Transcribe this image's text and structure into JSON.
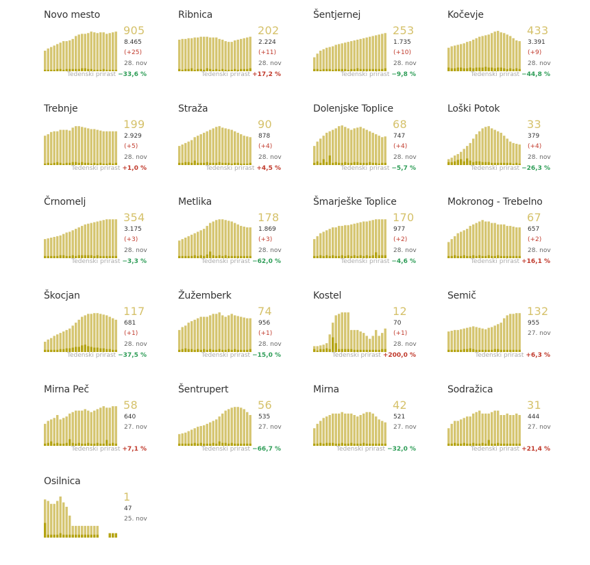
{
  "colors": {
    "active_bar": "#d5c570",
    "new_bar": "#b4a311",
    "active_text": "#d5c16a",
    "growth_down": "#2e9d57",
    "growth_up": "#c0392b"
  },
  "growth_label": "Tedenski prirast",
  "chart_data": [
    {
      "type": "bar",
      "title": "Novo mesto",
      "active": "905",
      "total": "8.465",
      "new": "(+25)",
      "date": "28. nov",
      "growth": "−33,6 %",
      "growth_dir": "down",
      "active_series": [
        28,
        31,
        33,
        35,
        37,
        39,
        41,
        41,
        42,
        44,
        48,
        50,
        51,
        51,
        52,
        54,
        53,
        52,
        53,
        53,
        51,
        52,
        53,
        54
      ],
      "new_series": [
        2,
        2,
        2,
        2,
        3,
        3,
        2,
        3,
        3,
        3,
        3,
        3,
        4,
        4,
        3,
        3,
        2,
        2,
        2,
        3,
        2,
        2,
        2,
        2
      ]
    },
    {
      "type": "bar",
      "title": "Ribnica",
      "active": "202",
      "total": "2.224",
      "new": "(+11)",
      "date": "28. nov",
      "growth": "+17,2 %",
      "growth_dir": "up",
      "active_series": [
        43,
        44,
        44,
        45,
        45,
        46,
        46,
        47,
        47,
        47,
        46,
        46,
        46,
        44,
        43,
        41,
        40,
        40,
        42,
        43,
        44,
        45,
        46,
        47
      ],
      "new_series": [
        3,
        2,
        3,
        3,
        4,
        2,
        3,
        3,
        2,
        4,
        3,
        2,
        3,
        2,
        3,
        2,
        2,
        2,
        3,
        2,
        3,
        3,
        3,
        4
      ]
    },
    {
      "type": "bar",
      "title": "Šentjernej",
      "active": "253",
      "total": "1.735",
      "new": "(+10)",
      "date": "28. nov",
      "growth": "−9,8 %",
      "growth_dir": "down",
      "active_series": [
        19,
        24,
        28,
        30,
        32,
        33,
        34,
        36,
        37,
        38,
        39,
        40,
        41,
        42,
        43,
        44,
        45,
        46,
        47,
        48,
        49,
        50,
        51,
        52
      ],
      "new_series": [
        3,
        3,
        2,
        3,
        3,
        3,
        2,
        3,
        3,
        3,
        3,
        2,
        3,
        3,
        4,
        3,
        3,
        3,
        3,
        3,
        3,
        3,
        3,
        4
      ]
    },
    {
      "type": "bar",
      "title": "Kočevje",
      "active": "433",
      "total": "3.391",
      "new": "(+9)",
      "date": "28. nov",
      "growth": "−44,8 %",
      "growth_dir": "down",
      "active_series": [
        32,
        34,
        35,
        36,
        37,
        38,
        40,
        41,
        43,
        45,
        47,
        48,
        49,
        50,
        52,
        54,
        55,
        53,
        52,
        50,
        48,
        45,
        42,
        41
      ],
      "new_series": [
        5,
        4,
        4,
        5,
        5,
        4,
        4,
        5,
        4,
        5,
        5,
        5,
        6,
        5,
        5,
        4,
        5,
        5,
        4,
        3,
        4,
        3,
        4,
        3
      ]
    },
    {
      "type": "bar",
      "title": "Trebnje",
      "active": "199",
      "total": "2.929",
      "new": "(+5)",
      "date": "28. nov",
      "growth": "+1,0 %",
      "growth_dir": "up",
      "active_series": [
        40,
        42,
        45,
        46,
        46,
        48,
        48,
        48,
        47,
        51,
        53,
        53,
        52,
        51,
        50,
        49,
        49,
        48,
        47,
        46,
        46,
        46,
        46,
        46
      ],
      "new_series": [
        2,
        3,
        2,
        3,
        4,
        3,
        2,
        3,
        3,
        4,
        4,
        3,
        4,
        3,
        3,
        2,
        3,
        2,
        3,
        2,
        2,
        3,
        2,
        3
      ]
    },
    {
      "type": "bar",
      "title": "Straža",
      "active": "90",
      "total": "878",
      "new": "(+4)",
      "date": "28. nov",
      "growth": "+4,5 %",
      "growth_dir": "up",
      "active_series": [
        26,
        28,
        30,
        32,
        34,
        38,
        40,
        42,
        44,
        46,
        48,
        50,
        52,
        53,
        51,
        50,
        49,
        48,
        46,
        44,
        42,
        40,
        39,
        38
      ],
      "new_series": [
        3,
        3,
        4,
        4,
        3,
        6,
        3,
        3,
        3,
        4,
        3,
        3,
        3,
        4,
        3,
        3,
        3,
        2,
        3,
        3,
        2,
        2,
        2,
        3
      ]
    },
    {
      "type": "bar",
      "title": "Dolenjske Toplice",
      "active": "68",
      "total": "747",
      "new": "(+4)",
      "date": "28. nov",
      "growth": "−5,7 %",
      "growth_dir": "down",
      "active_series": [
        26,
        32,
        36,
        40,
        44,
        46,
        48,
        50,
        53,
        54,
        52,
        50,
        48,
        50,
        51,
        52,
        50,
        48,
        46,
        44,
        42,
        40,
        38,
        39
      ],
      "new_series": [
        3,
        5,
        3,
        8,
        4,
        13,
        3,
        4,
        3,
        3,
        4,
        3,
        3,
        4,
        4,
        3,
        3,
        3,
        4,
        3,
        3,
        2,
        3,
        3
      ]
    },
    {
      "type": "bar",
      "title": "Loški Potok",
      "active": "33",
      "total": "379",
      "new": "(+4)",
      "date": "28. nov",
      "growth": "−26,3 %",
      "growth_dir": "down",
      "active_series": [
        8,
        10,
        13,
        15,
        18,
        22,
        26,
        30,
        36,
        42,
        46,
        50,
        52,
        53,
        50,
        48,
        46,
        44,
        40,
        36,
        32,
        30,
        29,
        28
      ],
      "new_series": [
        4,
        4,
        5,
        7,
        8,
        5,
        9,
        6,
        4,
        5,
        5,
        4,
        4,
        4,
        3,
        3,
        3,
        3,
        3,
        3,
        3,
        2,
        3,
        2
      ]
    },
    {
      "type": "bar",
      "title": "Črnomelj",
      "active": "354",
      "total": "3.175",
      "new": "(+3)",
      "date": "28. nov",
      "growth": "−3,3 %",
      "growth_dir": "down",
      "active_series": [
        26,
        27,
        28,
        29,
        30,
        31,
        33,
        35,
        36,
        38,
        40,
        42,
        44,
        46,
        47,
        48,
        49,
        50,
        51,
        52,
        53,
        53,
        53,
        53
      ],
      "new_series": [
        3,
        3,
        3,
        3,
        3,
        4,
        4,
        3,
        3,
        4,
        3,
        4,
        4,
        4,
        4,
        4,
        3,
        4,
        3,
        3,
        3,
        3,
        3,
        3
      ]
    },
    {
      "type": "bar",
      "title": "Metlika",
      "active": "178",
      "total": "1.869",
      "new": "(+3)",
      "date": "28. nov",
      "growth": "−62,0 %",
      "growth_dir": "down",
      "active_series": [
        24,
        26,
        28,
        30,
        32,
        34,
        36,
        38,
        40,
        44,
        48,
        50,
        52,
        53,
        53,
        52,
        51,
        50,
        48,
        46,
        44,
        43,
        42,
        42
      ],
      "new_series": [
        3,
        3,
        3,
        3,
        3,
        4,
        3,
        4,
        3,
        5,
        9,
        4,
        3,
        4,
        3,
        4,
        3,
        3,
        3,
        3,
        3,
        3,
        3,
        3
      ]
    },
    {
      "type": "bar",
      "title": "Šmarješke Toplice",
      "active": "170",
      "total": "977",
      "new": "(+2)",
      "date": "28. nov",
      "growth": "−4,6 %",
      "growth_dir": "down",
      "active_series": [
        26,
        30,
        34,
        36,
        38,
        40,
        42,
        42,
        44,
        44,
        45,
        45,
        46,
        47,
        48,
        49,
        50,
        50,
        51,
        52,
        53,
        53,
        53,
        53
      ],
      "new_series": [
        3,
        3,
        4,
        3,
        4,
        3,
        4,
        3,
        3,
        4,
        3,
        4,
        3,
        4,
        3,
        4,
        3,
        4,
        3,
        4,
        8,
        4,
        4,
        4
      ]
    },
    {
      "type": "bar",
      "title": "Mokronog - Trebelno",
      "active": "67",
      "total": "657",
      "new": "(+2)",
      "date": "28. nov",
      "growth": "+16,1 %",
      "growth_dir": "up",
      "active_series": [
        22,
        26,
        30,
        34,
        36,
        38,
        40,
        44,
        46,
        48,
        50,
        52,
        50,
        50,
        48,
        48,
        46,
        46,
        46,
        44,
        44,
        43,
        42,
        42
      ],
      "new_series": [
        3,
        3,
        4,
        3,
        3,
        4,
        3,
        3,
        4,
        3,
        4,
        3,
        3,
        4,
        3,
        3,
        4,
        3,
        3,
        3,
        3,
        3,
        3,
        3
      ]
    },
    {
      "type": "bar",
      "title": "Škocjan",
      "active": "117",
      "total": "681",
      "new": "(+1)",
      "date": "28. nov",
      "growth": "−37,5 %",
      "growth_dir": "down",
      "active_series": [
        14,
        17,
        19,
        22,
        24,
        26,
        28,
        30,
        32,
        36,
        40,
        44,
        48,
        50,
        52,
        52,
        53,
        53,
        52,
        51,
        50,
        48,
        46,
        44
      ],
      "new_series": [
        3,
        3,
        3,
        3,
        3,
        4,
        4,
        5,
        5,
        6,
        7,
        7,
        9,
        10,
        8,
        7,
        6,
        6,
        5,
        5,
        4,
        4,
        3,
        3
      ]
    },
    {
      "type": "bar",
      "title": "Žužemberk",
      "active": "74",
      "total": "956",
      "new": "(+1)",
      "date": "28. nov",
      "growth": "−15,0 %",
      "growth_dir": "down",
      "active_series": [
        30,
        34,
        36,
        40,
        42,
        44,
        46,
        48,
        48,
        48,
        50,
        52,
        52,
        54,
        50,
        48,
        50,
        52,
        50,
        49,
        48,
        47,
        46,
        46
      ],
      "new_series": [
        3,
        4,
        5,
        4,
        4,
        3,
        4,
        3,
        4,
        3,
        4,
        3,
        3,
        4,
        3,
        3,
        4,
        3,
        4,
        3,
        3,
        3,
        3,
        4
      ]
    },
    {
      "type": "bar",
      "title": "Kostel",
      "active": "12",
      "total": "70",
      "new": "(+1)",
      "date": "28. nov",
      "growth": "+200,0 %",
      "growth_dir": "up",
      "active_series": [
        8,
        8,
        9,
        10,
        12,
        24,
        40,
        50,
        52,
        54,
        54,
        54,
        30,
        30,
        30,
        28,
        26,
        22,
        18,
        22,
        30,
        22,
        26,
        32
      ],
      "new_series": [
        4,
        2,
        4,
        4,
        5,
        4,
        20,
        12,
        4,
        4,
        4,
        4,
        4,
        3,
        3,
        3,
        3,
        3,
        3,
        3,
        3,
        3,
        4,
        4
      ]
    },
    {
      "type": "bar",
      "title": "Semič",
      "active": "132",
      "total": "955",
      "new": "",
      "date": "27. nov",
      "growth": "+6,3 %",
      "growth_dir": "up",
      "active_series": [
        28,
        29,
        30,
        30,
        31,
        32,
        33,
        34,
        35,
        34,
        33,
        32,
        31,
        33,
        34,
        36,
        38,
        40,
        46,
        50,
        52,
        52,
        53,
        53
      ],
      "new_series": [
        3,
        3,
        3,
        3,
        3,
        4,
        4,
        5,
        4,
        3,
        3,
        3,
        3,
        3,
        3,
        4,
        4,
        3,
        3,
        3,
        3,
        3,
        3,
        3
      ]
    },
    {
      "type": "bar",
      "title": "Mirna Peč",
      "active": "58",
      "total": "640",
      "new": "",
      "date": "27. nov",
      "growth": "+7,1 %",
      "growth_dir": "up",
      "active_series": [
        30,
        34,
        36,
        38,
        42,
        36,
        38,
        40,
        44,
        46,
        48,
        48,
        48,
        50,
        48,
        46,
        48,
        50,
        52,
        54,
        52,
        52,
        54,
        54
      ],
      "new_series": [
        3,
        4,
        6,
        3,
        4,
        3,
        3,
        4,
        9,
        4,
        3,
        4,
        3,
        3,
        4,
        3,
        3,
        4,
        3,
        3,
        8,
        3,
        4,
        3
      ]
    },
    {
      "type": "bar",
      "title": "Šentrupert",
      "active": "56",
      "total": "535",
      "new": "",
      "date": "27. nov",
      "growth": "−66,7 %",
      "growth_dir": "down",
      "active_series": [
        16,
        17,
        18,
        20,
        22,
        24,
        26,
        27,
        28,
        30,
        32,
        34,
        36,
        40,
        44,
        48,
        50,
        52,
        53,
        53,
        52,
        50,
        46,
        42
      ],
      "new_series": [
        3,
        3,
        3,
        3,
        3,
        4,
        3,
        4,
        3,
        3,
        3,
        4,
        3,
        6,
        4,
        4,
        3,
        4,
        3,
        3,
        3,
        3,
        3,
        3
      ]
    },
    {
      "type": "bar",
      "title": "Mirna",
      "active": "42",
      "total": "521",
      "new": "",
      "date": "27. nov",
      "growth": "−32,0 %",
      "growth_dir": "down",
      "active_series": [
        24,
        30,
        34,
        38,
        40,
        42,
        44,
        44,
        44,
        46,
        44,
        44,
        44,
        42,
        40,
        42,
        44,
        46,
        46,
        44,
        40,
        36,
        34,
        32
      ],
      "new_series": [
        3,
        3,
        4,
        3,
        4,
        4,
        4,
        3,
        3,
        4,
        3,
        3,
        4,
        3,
        3,
        3,
        4,
        3,
        3,
        3,
        3,
        3,
        3,
        3
      ]
    },
    {
      "type": "bar",
      "title": "Sodražica",
      "active": "31",
      "total": "444",
      "new": "",
      "date": "27. nov",
      "growth": "+21,4 %",
      "growth_dir": "up",
      "active_series": [
        24,
        30,
        34,
        34,
        36,
        38,
        40,
        40,
        44,
        46,
        48,
        44,
        44,
        44,
        46,
        48,
        48,
        42,
        42,
        44,
        42,
        42,
        44,
        42
      ],
      "new_series": [
        3,
        3,
        4,
        3,
        3,
        4,
        3,
        3,
        4,
        3,
        3,
        4,
        3,
        8,
        3,
        3,
        4,
        3,
        3,
        3,
        3,
        3,
        3,
        3
      ]
    },
    {
      "type": "bar",
      "title": "Osilnica",
      "active": "1",
      "total": "47",
      "new": "",
      "date": "25. nov",
      "growth": "",
      "growth_dir": "",
      "active_series": [
        52,
        50,
        46,
        46,
        50,
        56,
        48,
        42,
        30,
        16,
        16,
        16,
        16,
        16,
        16,
        16,
        16,
        16,
        0,
        0,
        0,
        6,
        6,
        6
      ],
      "new_series": [
        20,
        4,
        4,
        4,
        4,
        6,
        4,
        4,
        4,
        4,
        4,
        4,
        4,
        4,
        4,
        4,
        4,
        4,
        0,
        0,
        0,
        6,
        6,
        6
      ]
    }
  ]
}
